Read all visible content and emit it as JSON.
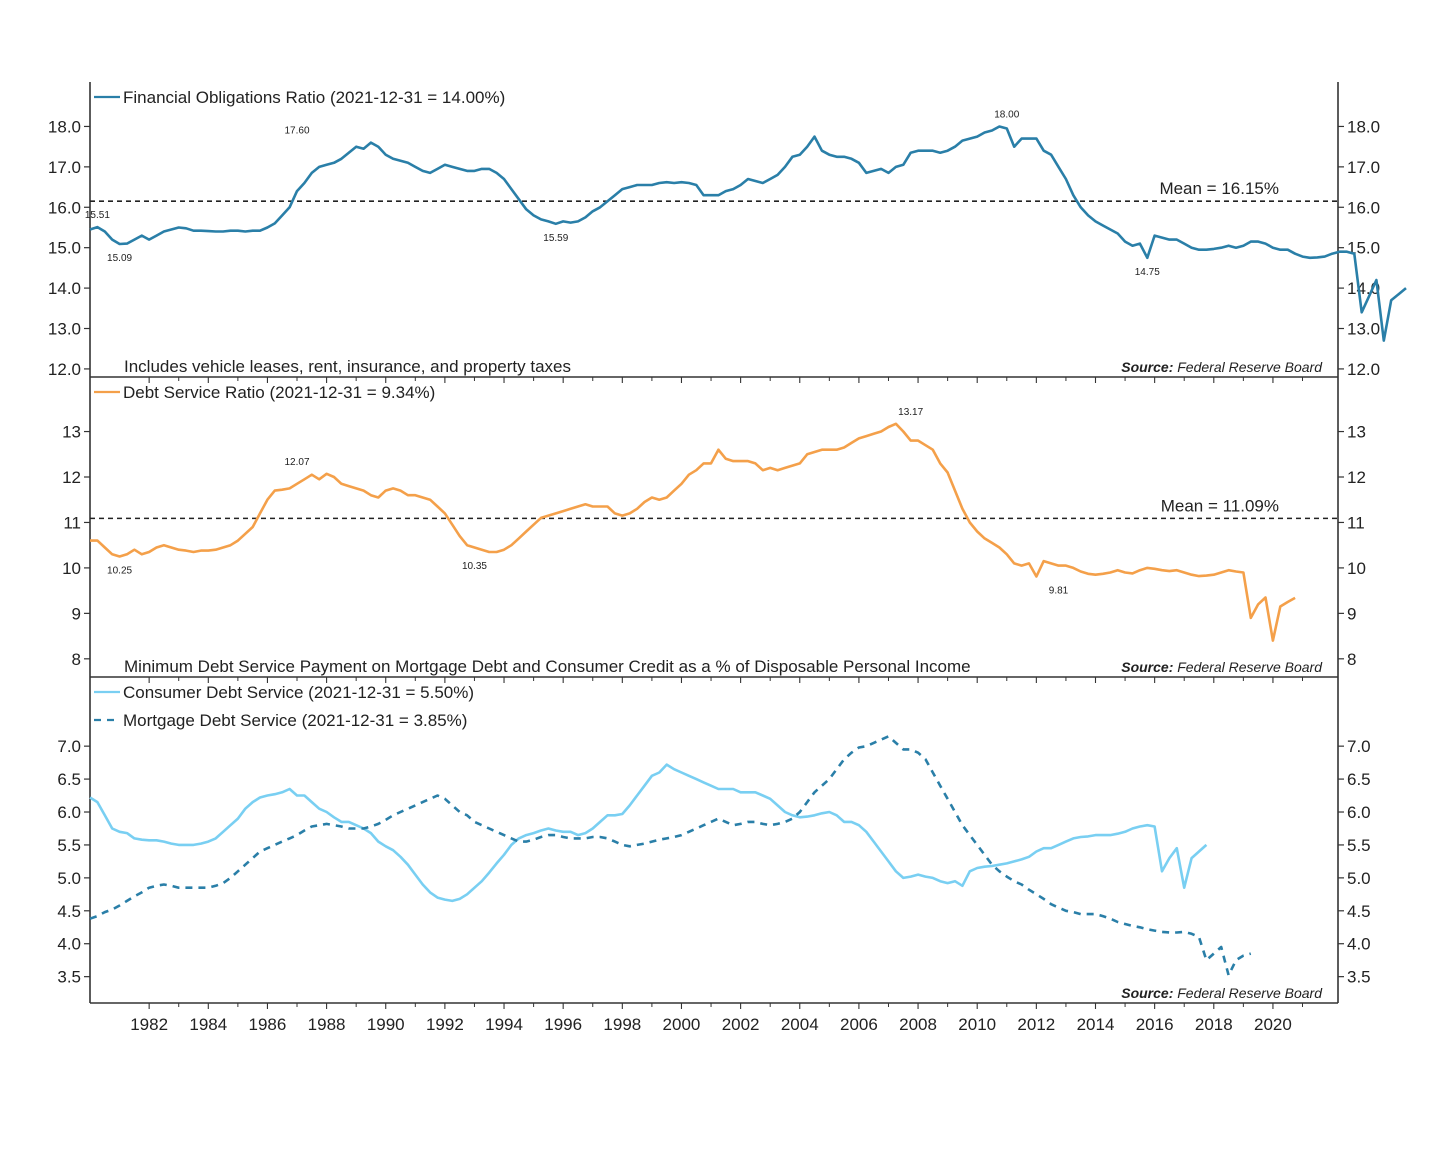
{
  "colors": {
    "dark_blue": "#2a7fa8",
    "orange": "#f4a04a",
    "light_blue": "#79cff2",
    "mortgage": "#2a7fa8",
    "frame": "#333333"
  },
  "chart_data": [
    {
      "type": "line",
      "panel": "financial-obligations",
      "xlim": [
        1980,
        2022.2
      ],
      "ylim": [
        11.8,
        19.1
      ],
      "yticks": [
        "18.0",
        "17.0",
        "16.0",
        "15.0",
        "14.0",
        "13.0",
        "12.0"
      ],
      "ytick_values": [
        18,
        17,
        16,
        15,
        14,
        13,
        12
      ],
      "legend_placement": "top-left",
      "series": [
        {
          "name": "Financial Obligations Ratio (2021-12-31 = 14.00%)",
          "color": "#2a7fa8",
          "dash": false,
          "x_start": 1980,
          "x_step": 0.25,
          "values": [
            15.45,
            15.51,
            15.4,
            15.2,
            15.09,
            15.1,
            15.2,
            15.3,
            15.2,
            15.3,
            15.4,
            15.45,
            15.5,
            15.48,
            15.42,
            15.42,
            15.41,
            15.4,
            15.4,
            15.42,
            15.42,
            15.4,
            15.42,
            15.42,
            15.5,
            15.6,
            15.8,
            16.0,
            16.4,
            16.6,
            16.85,
            17.0,
            17.05,
            17.1,
            17.2,
            17.35,
            17.5,
            17.45,
            17.6,
            17.5,
            17.3,
            17.2,
            17.15,
            17.1,
            17.0,
            16.9,
            16.85,
            16.95,
            17.05,
            17.0,
            16.95,
            16.9,
            16.9,
            16.95,
            16.95,
            16.85,
            16.7,
            16.45,
            16.2,
            15.95,
            15.8,
            15.7,
            15.65,
            15.59,
            15.65,
            15.62,
            15.65,
            15.75,
            15.9,
            16.0,
            16.15,
            16.3,
            16.45,
            16.5,
            16.55,
            16.55,
            16.55,
            16.6,
            16.62,
            16.6,
            16.62,
            16.6,
            16.55,
            16.3,
            16.3,
            16.3,
            16.4,
            16.45,
            16.55,
            16.7,
            16.65,
            16.6,
            16.7,
            16.8,
            17.0,
            17.25,
            17.3,
            17.5,
            17.75,
            17.4,
            17.3,
            17.25,
            17.25,
            17.2,
            17.1,
            16.85,
            16.9,
            16.95,
            16.85,
            17.0,
            17.05,
            17.35,
            17.4,
            17.4,
            17.4,
            17.35,
            17.4,
            17.5,
            17.65,
            17.7,
            17.75,
            17.85,
            17.9,
            18.0,
            17.95,
            17.5,
            17.7,
            17.7,
            17.7,
            17.4,
            17.3,
            17.0,
            16.7,
            16.3,
            16.0,
            15.8,
            15.65,
            15.55,
            15.45,
            15.35,
            15.15,
            15.05,
            15.1,
            14.75,
            15.3,
            15.25,
            15.2,
            15.2,
            15.1,
            15.0,
            14.95,
            14.95,
            14.97,
            15.0,
            15.05,
            15.0,
            15.05,
            15.15,
            15.15,
            15.1,
            15.0,
            14.95,
            14.95,
            14.85,
            14.78,
            14.75,
            14.76,
            14.78,
            14.85,
            14.9,
            14.9,
            14.85,
            13.4,
            13.8,
            14.2,
            12.7,
            13.7,
            13.85,
            14.0
          ]
        }
      ],
      "mean": {
        "value": 16.15,
        "label": "Mean = 16.15%"
      },
      "annotations": [
        {
          "x": 1980.25,
          "y": 15.51,
          "label": "15.51",
          "pos": "above"
        },
        {
          "x": 1981.0,
          "y": 15.09,
          "label": "15.09",
          "pos": "below"
        },
        {
          "x": 1987.0,
          "y": 17.6,
          "label": "17.60",
          "pos": "above"
        },
        {
          "x": 1995.75,
          "y": 15.59,
          "label": "15.59",
          "pos": "below"
        },
        {
          "x": 2011.0,
          "y": 18.0,
          "label": "18.00",
          "pos": "above"
        },
        {
          "x": 2015.75,
          "y": 14.75,
          "label": "14.75",
          "pos": "below"
        }
      ],
      "note": "Includes vehicle leases, rent, insurance, and property taxes",
      "source_prefix": "Source:",
      "source_name": "Federal Reserve Board"
    },
    {
      "type": "line",
      "panel": "debt-service",
      "xlim": [
        1980,
        2022.2
      ],
      "ylim": [
        7.6,
        14.2
      ],
      "yticks": [
        "13",
        "12",
        "11",
        "10",
        "9",
        "8"
      ],
      "ytick_values": [
        13,
        12,
        11,
        10,
        9,
        8
      ],
      "legend_placement": "top-left",
      "series": [
        {
          "name": "Debt Service Ratio (2021-12-31 = 9.34%)",
          "color": "#f4a04a",
          "dash": false,
          "x_start": 1980,
          "x_step": 0.25,
          "values": [
            10.6,
            10.6,
            10.45,
            10.3,
            10.25,
            10.3,
            10.4,
            10.3,
            10.35,
            10.45,
            10.5,
            10.45,
            10.4,
            10.38,
            10.35,
            10.38,
            10.38,
            10.4,
            10.45,
            10.5,
            10.6,
            10.75,
            10.9,
            11.2,
            11.5,
            11.7,
            11.72,
            11.75,
            11.85,
            11.95,
            12.05,
            11.95,
            12.07,
            12.0,
            11.85,
            11.8,
            11.75,
            11.7,
            11.6,
            11.55,
            11.7,
            11.75,
            11.7,
            11.6,
            11.6,
            11.55,
            11.5,
            11.35,
            11.2,
            10.95,
            10.7,
            10.5,
            10.45,
            10.4,
            10.35,
            10.35,
            10.4,
            10.5,
            10.65,
            10.8,
            10.95,
            11.1,
            11.15,
            11.2,
            11.25,
            11.3,
            11.35,
            11.4,
            11.35,
            11.35,
            11.35,
            11.2,
            11.15,
            11.2,
            11.3,
            11.45,
            11.55,
            11.5,
            11.55,
            11.7,
            11.85,
            12.05,
            12.15,
            12.3,
            12.3,
            12.6,
            12.4,
            12.35,
            12.35,
            12.35,
            12.3,
            12.15,
            12.2,
            12.15,
            12.2,
            12.25,
            12.3,
            12.5,
            12.55,
            12.6,
            12.6,
            12.6,
            12.65,
            12.75,
            12.85,
            12.9,
            12.95,
            13.0,
            13.1,
            13.17,
            13.0,
            12.8,
            12.8,
            12.7,
            12.6,
            12.3,
            12.1,
            11.7,
            11.3,
            11.0,
            10.8,
            10.65,
            10.55,
            10.45,
            10.3,
            10.1,
            10.05,
            10.1,
            9.81,
            10.15,
            10.1,
            10.05,
            10.05,
            10.0,
            9.92,
            9.87,
            9.85,
            9.87,
            9.9,
            9.95,
            9.9,
            9.88,
            9.95,
            10.0,
            9.98,
            9.95,
            9.93,
            9.95,
            9.9,
            9.85,
            9.82,
            9.83,
            9.85,
            9.9,
            9.95,
            9.92,
            9.9,
            8.9,
            9.2,
            9.35,
            8.4,
            9.15,
            9.25,
            9.34
          ]
        }
      ],
      "mean": {
        "value": 11.09,
        "label": "Mean = 11.09%"
      },
      "annotations": [
        {
          "x": 1981.0,
          "y": 10.25,
          "label": "10.25",
          "pos": "below"
        },
        {
          "x": 1987.0,
          "y": 12.07,
          "label": "12.07",
          "pos": "above"
        },
        {
          "x": 1993.0,
          "y": 10.35,
          "label": "10.35",
          "pos": "below"
        },
        {
          "x": 2007.75,
          "y": 13.17,
          "label": "13.17",
          "pos": "above"
        },
        {
          "x": 2012.75,
          "y": 9.81,
          "label": "9.81",
          "pos": "below"
        }
      ],
      "note": "Minimum Debt Service Payment on Mortgage Debt and Consumer Credit as a % of Disposable Personal Income",
      "source_prefix": "Source:",
      "source_name": "Federal Reserve Board"
    },
    {
      "type": "line",
      "panel": "components",
      "xlim": [
        1980,
        2022.2
      ],
      "ylim": [
        3.1,
        8.05
      ],
      "yticks": [
        "7.0",
        "6.5",
        "6.0",
        "5.5",
        "5.0",
        "4.5",
        "4.0",
        "3.5"
      ],
      "ytick_values": [
        7.0,
        6.5,
        6.0,
        5.5,
        5.0,
        4.5,
        4.0,
        3.5
      ],
      "xticks": [
        "1982",
        "1984",
        "1986",
        "1988",
        "1990",
        "1992",
        "1994",
        "1996",
        "1998",
        "2000",
        "2002",
        "2004",
        "2006",
        "2008",
        "2010",
        "2012",
        "2014",
        "2016",
        "2018",
        "2020"
      ],
      "xtick_values": [
        1982,
        1984,
        1986,
        1988,
        1990,
        1992,
        1994,
        1996,
        1998,
        2000,
        2002,
        2004,
        2006,
        2008,
        2010,
        2012,
        2014,
        2016,
        2018,
        2020
      ],
      "legend_placement": "top-left",
      "series": [
        {
          "name": "Consumer Debt Service (2021-12-31 = 5.50%)",
          "color": "#79cff2",
          "dash": false,
          "x_start": 1980,
          "x_step": 0.25,
          "values": [
            6.22,
            6.15,
            5.95,
            5.75,
            5.7,
            5.68,
            5.6,
            5.58,
            5.57,
            5.57,
            5.55,
            5.52,
            5.5,
            5.5,
            5.5,
            5.52,
            5.55,
            5.6,
            5.7,
            5.8,
            5.9,
            6.05,
            6.15,
            6.22,
            6.25,
            6.27,
            6.3,
            6.35,
            6.25,
            6.25,
            6.15,
            6.05,
            6.0,
            5.92,
            5.85,
            5.85,
            5.8,
            5.75,
            5.68,
            5.55,
            5.48,
            5.42,
            5.32,
            5.2,
            5.05,
            4.9,
            4.78,
            4.7,
            4.67,
            4.65,
            4.68,
            4.75,
            4.85,
            4.95,
            5.08,
            5.22,
            5.35,
            5.5,
            5.6,
            5.65,
            5.68,
            5.72,
            5.75,
            5.72,
            5.7,
            5.7,
            5.65,
            5.68,
            5.75,
            5.85,
            5.95,
            5.95,
            5.97,
            6.1,
            6.25,
            6.4,
            6.55,
            6.6,
            6.72,
            6.65,
            6.6,
            6.55,
            6.5,
            6.45,
            6.4,
            6.35,
            6.35,
            6.35,
            6.3,
            6.3,
            6.3,
            6.25,
            6.2,
            6.1,
            6.0,
            5.95,
            5.92,
            5.93,
            5.95,
            5.98,
            6.0,
            5.95,
            5.85,
            5.85,
            5.8,
            5.7,
            5.55,
            5.4,
            5.25,
            5.1,
            5.0,
            5.02,
            5.05,
            5.02,
            5.0,
            4.95,
            4.92,
            4.95,
            4.88,
            5.1,
            5.15,
            5.17,
            5.18,
            5.2,
            5.22,
            5.25,
            5.28,
            5.32,
            5.4,
            5.45,
            5.45,
            5.5,
            5.55,
            5.6,
            5.62,
            5.63,
            5.65,
            5.65,
            5.65,
            5.67,
            5.7,
            5.75,
            5.78,
            5.8,
            5.78,
            5.1,
            5.3,
            5.45,
            4.85,
            5.3,
            5.4,
            5.5
          ]
        },
        {
          "name": "Mortgage Debt Service (2021-12-31 = 3.85%)",
          "color": "#2a7fa8",
          "dash": true,
          "x_start": 1980,
          "x_step": 0.25,
          "values": [
            4.38,
            4.42,
            4.48,
            4.52,
            4.58,
            4.65,
            4.72,
            4.78,
            4.85,
            4.88,
            4.9,
            4.88,
            4.85,
            4.85,
            4.85,
            4.85,
            4.85,
            4.88,
            4.92,
            5.0,
            5.1,
            5.2,
            5.3,
            5.4,
            5.45,
            5.5,
            5.55,
            5.6,
            5.65,
            5.72,
            5.78,
            5.8,
            5.82,
            5.8,
            5.78,
            5.75,
            5.75,
            5.75,
            5.78,
            5.82,
            5.88,
            5.95,
            6.0,
            6.05,
            6.1,
            6.15,
            6.2,
            6.25,
            6.2,
            6.1,
            6.0,
            5.95,
            5.85,
            5.8,
            5.75,
            5.7,
            5.65,
            5.6,
            5.55,
            5.55,
            5.58,
            5.62,
            5.65,
            5.65,
            5.62,
            5.6,
            5.6,
            5.6,
            5.62,
            5.62,
            5.6,
            5.55,
            5.5,
            5.48,
            5.5,
            5.52,
            5.55,
            5.58,
            5.6,
            5.62,
            5.65,
            5.7,
            5.75,
            5.8,
            5.85,
            5.9,
            5.85,
            5.8,
            5.82,
            5.85,
            5.85,
            5.82,
            5.8,
            5.82,
            5.85,
            5.9,
            6.0,
            6.15,
            6.3,
            6.4,
            6.5,
            6.65,
            6.8,
            6.9,
            6.98,
            7.0,
            7.05,
            7.1,
            7.15,
            7.05,
            6.95,
            6.95,
            6.9,
            6.8,
            6.6,
            6.4,
            6.2,
            6.0,
            5.8,
            5.65,
            5.5,
            5.35,
            5.2,
            5.1,
            5.02,
            4.95,
            4.9,
            4.82,
            4.75,
            4.68,
            4.6,
            4.55,
            4.5,
            4.48,
            4.45,
            4.45,
            4.45,
            4.42,
            4.38,
            4.33,
            4.3,
            4.27,
            4.25,
            4.22,
            4.2,
            4.18,
            4.17,
            4.17,
            4.18,
            4.15,
            4.1,
            3.75,
            3.85,
            3.95,
            3.52,
            3.75,
            3.82,
            3.85
          ]
        }
      ],
      "source_prefix": "Source:",
      "source_name": "Federal Reserve Board"
    }
  ]
}
